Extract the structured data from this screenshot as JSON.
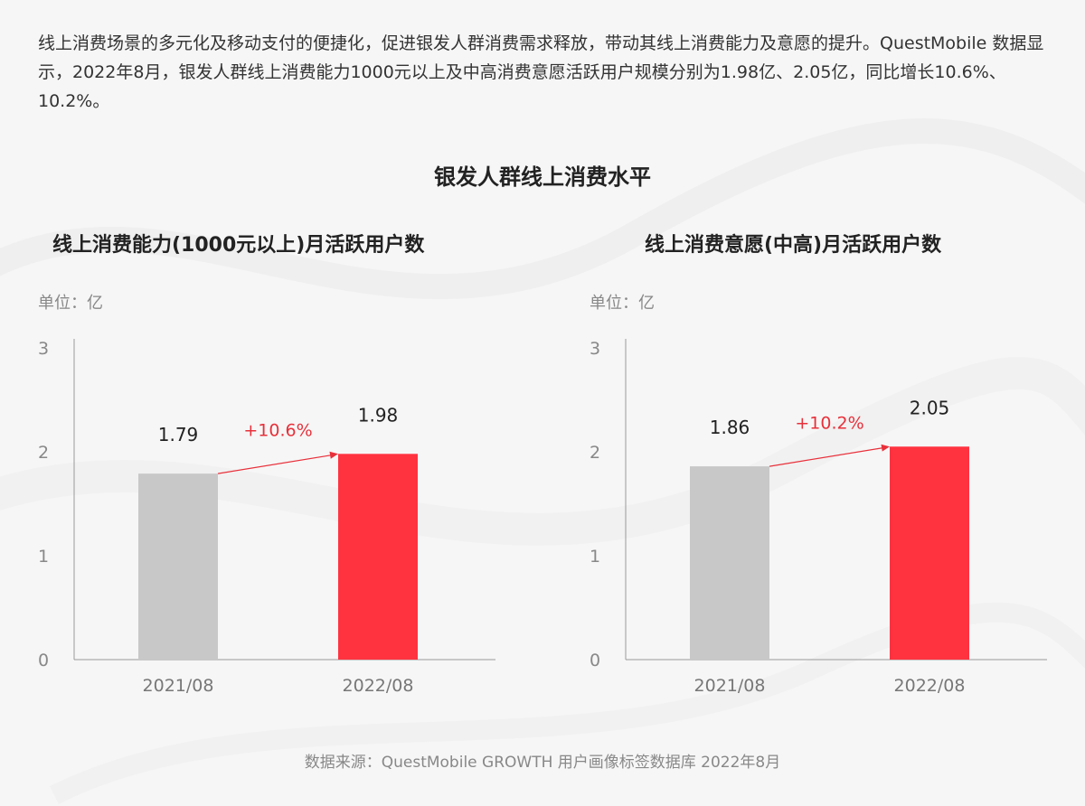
{
  "intro_text": "线上消费场景的多元化及移动支付的便捷化，促进银发人群消费需求释放，带动其线上消费能力及意愿的提升。QuestMobile 数据显示，2022年8月，银发人群线上消费能力1000元以上及中高消费意愿活跃用户规模分别为1.98亿、2.05亿，同比增长10.6%、10.2%。",
  "main_title": "银发人群线上消费水平",
  "colors": {
    "base_bar": "#c8c8c8",
    "highlight_bar": "#ff3340",
    "growth_text": "#e8303a",
    "axis": "#999999"
  },
  "chart_data": [
    {
      "type": "bar",
      "title": "线上消费能力(1000元以上)月活跃用户数",
      "unit_label": "单位：亿",
      "categories": [
        "2021/08",
        "2022/08"
      ],
      "values": [
        1.79,
        1.98
      ],
      "value_labels": [
        "1.79",
        "1.98"
      ],
      "growth_label": "+10.6%",
      "ylim": [
        0,
        3
      ],
      "y_ticks": [
        "0",
        "1",
        "2",
        "3"
      ],
      "grid": false,
      "legend": "none"
    },
    {
      "type": "bar",
      "title": "线上消费意愿(中高)月活跃用户数",
      "unit_label": "单位：亿",
      "categories": [
        "2021/08",
        "2022/08"
      ],
      "values": [
        1.86,
        2.05
      ],
      "value_labels": [
        "1.86",
        "2.05"
      ],
      "growth_label": "+10.2%",
      "ylim": [
        0,
        3
      ],
      "y_ticks": [
        "0",
        "1",
        "2",
        "3"
      ],
      "grid": false,
      "legend": "none"
    }
  ],
  "footer": "数据来源：QuestMobile GROWTH 用户画像标签数据库 2022年8月"
}
